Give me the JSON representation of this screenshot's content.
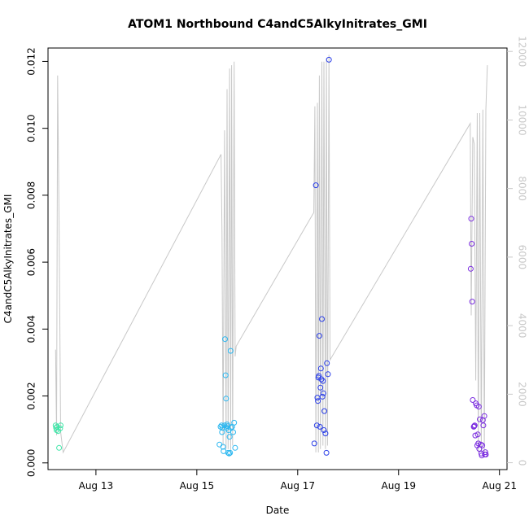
{
  "chart_data": {
    "type": "scatter",
    "title": "ATOM1 Northbound C4andC5AlkyInitrates_GMI",
    "xlabel": "Date",
    "ylabel": "C4andC5AlkyInitrates_GMI",
    "x_ticks": [
      "Aug 13",
      "Aug 15",
      "Aug 17",
      "Aug 19",
      "Aug 21"
    ],
    "x_tick_days": [
      13,
      15,
      17,
      19,
      21
    ],
    "xlim": [
      12.05,
      21.15
    ],
    "ylim": [
      -0.0002,
      0.0124
    ],
    "y_ticks": [
      0.0,
      0.002,
      0.004,
      0.006,
      0.008,
      0.01,
      0.012
    ],
    "y_tick_labels": [
      "0.000",
      "0.002",
      "0.004",
      "0.006",
      "0.008",
      "0.010",
      "0.012"
    ],
    "y2lim": [
      -200,
      12100
    ],
    "y2_ticks": [
      0,
      2000,
      4000,
      6000,
      8000,
      10000,
      12000
    ],
    "y2_tick_labels": [
      "0",
      "2000",
      "4000",
      "6000",
      "8000",
      "10000",
      "12000"
    ],
    "colors": {
      "altitude_line": "#c8c8c8",
      "right_axis": "#c8c8c8",
      "flight_1": "#3ee6a8",
      "flight_2": "#2bb7f0",
      "flight_3": "#2b3fe8",
      "flight_4": "#7a2be0"
    },
    "altitude_series": {
      "x": [
        12.2,
        12.22,
        12.24,
        12.27,
        12.3,
        12.35,
        15.48,
        15.5,
        15.52,
        15.55,
        15.58,
        15.6,
        15.62,
        15.65,
        15.67,
        15.69,
        15.71,
        15.74,
        15.76,
        15.78,
        17.32,
        17.34,
        17.36,
        17.39,
        17.41,
        17.43,
        17.45,
        17.48,
        17.5,
        17.52,
        17.55,
        17.57,
        17.59,
        17.62,
        17.64,
        20.42,
        20.44,
        20.47,
        20.5,
        20.53,
        20.56,
        20.58,
        20.61,
        20.64,
        20.67,
        20.7,
        20.73,
        20.76
      ],
      "y": [
        3300,
        800,
        11300,
        7000,
        900,
        300,
        9000,
        6700,
        500,
        9700,
        400,
        10900,
        400,
        11500,
        300,
        11600,
        500,
        11700,
        3100,
        3400,
        7300,
        10400,
        300,
        10500,
        300,
        11300,
        400,
        11700,
        500,
        11700,
        400,
        11800,
        500,
        11900,
        3000,
        9900,
        4300,
        9500,
        9300,
        2400,
        10200,
        300,
        10200,
        300,
        10300,
        300,
        10300,
        11600
      ]
    },
    "series": [
      {
        "x": [
          12.2,
          12.21,
          12.22,
          12.23,
          12.25,
          12.27,
          12.29,
          12.3
        ],
        "y": [
          0.00112,
          0.00105,
          0.00098,
          0.00108,
          0.00095,
          0.00045,
          0.00103,
          0.00112
        ]
      },
      {
        "x": [
          15.45,
          15.47,
          15.49,
          15.5,
          15.51,
          15.52,
          15.53,
          15.55,
          15.56,
          15.57,
          15.58,
          15.59,
          15.6,
          15.61,
          15.62,
          15.63,
          15.64,
          15.65,
          15.66,
          15.67,
          15.68,
          15.7,
          15.72,
          15.74,
          15.76
        ],
        "y": [
          0.00055,
          0.00108,
          0.00112,
          0.00092,
          0.00105,
          0.00048,
          0.00035,
          0.00112,
          0.0037,
          0.00262,
          0.00192,
          0.00105,
          0.00115,
          0.0011,
          0.0003,
          0.00098,
          0.00028,
          0.00078,
          0.0003,
          0.00335,
          0.00105,
          0.00108,
          0.00092,
          0.0012,
          0.00045
        ]
      },
      {
        "x": [
          17.33,
          17.36,
          17.38,
          17.39,
          17.4,
          17.41,
          17.42,
          17.43,
          17.44,
          17.45,
          17.46,
          17.47,
          17.48,
          17.49,
          17.5,
          17.51,
          17.52,
          17.53,
          17.55,
          17.57,
          17.58,
          17.6,
          17.62
        ],
        "y": [
          0.00058,
          0.0083,
          0.00112,
          0.00195,
          0.00185,
          0.00255,
          0.0026,
          0.0038,
          0.00108,
          0.00225,
          0.00282,
          0.0025,
          0.0043,
          0.00198,
          0.00245,
          0.00208,
          0.00098,
          0.00155,
          0.00088,
          0.0003,
          0.00298,
          0.00265,
          0.01205
        ]
      },
      {
        "x": [
          20.43,
          20.44,
          20.45,
          20.46,
          20.47,
          20.49,
          20.5,
          20.51,
          20.52,
          20.53,
          20.55,
          20.56,
          20.57,
          20.58,
          20.59,
          20.6,
          20.61,
          20.63,
          20.64,
          20.65,
          20.66,
          20.67,
          20.68,
          20.7,
          20.71,
          20.72,
          20.73
        ],
        "y": [
          0.0058,
          0.0073,
          0.00655,
          0.00482,
          0.00188,
          0.00108,
          0.0011,
          0.00112,
          0.00082,
          0.00178,
          0.00172,
          0.00052,
          0.00085,
          0.00058,
          0.00168,
          0.00042,
          0.0013,
          0.00055,
          0.00028,
          0.00022,
          0.00052,
          0.00128,
          0.00112,
          0.0014,
          0.00025,
          0.00032,
          0.00025
        ]
      }
    ]
  }
}
